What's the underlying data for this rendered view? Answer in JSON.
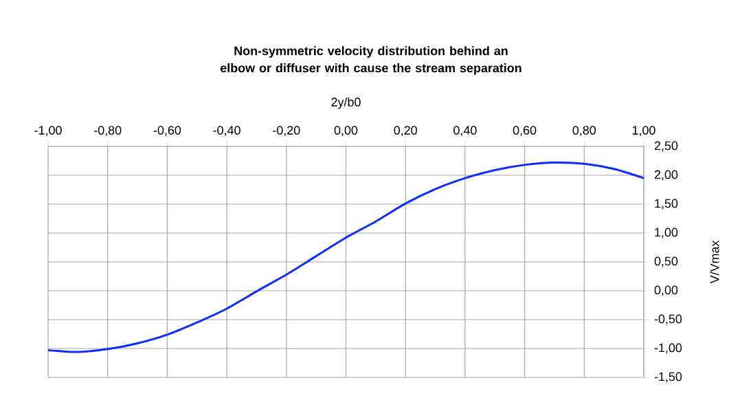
{
  "chart_data": {
    "type": "line",
    "title": "Non-symmetric velocity distribution behind an elbow or diffuser with cause the stream separation",
    "xlabel": "2y/b0",
    "ylabel": "V/Vmax",
    "x": [
      -1.0,
      -0.9,
      -0.8,
      -0.7,
      -0.6,
      -0.5,
      -0.4,
      -0.3,
      -0.2,
      -0.1,
      0.0,
      0.1,
      0.2,
      0.3,
      0.4,
      0.5,
      0.6,
      0.7,
      0.8,
      0.9,
      1.0
    ],
    "series": [
      {
        "color": "#0a2cff",
        "values": [
          -1.03,
          -1.06,
          -1.01,
          -0.91,
          -0.76,
          -0.55,
          -0.31,
          -0.01,
          0.28,
          0.6,
          0.92,
          1.2,
          1.51,
          1.76,
          1.95,
          2.09,
          2.18,
          2.22,
          2.2,
          2.11,
          1.95
        ]
      }
    ],
    "xlim": [
      -1.0,
      1.0
    ],
    "ylim": [
      -1.5,
      2.5
    ],
    "xticks": [
      {
        "value": -1.0,
        "label": "-1,00"
      },
      {
        "value": -0.8,
        "label": "-0,80"
      },
      {
        "value": -0.6,
        "label": "-0,60"
      },
      {
        "value": -0.4,
        "label": "-0,40"
      },
      {
        "value": -0.2,
        "label": "-0,20"
      },
      {
        "value": 0.0,
        "label": "0,00"
      },
      {
        "value": 0.2,
        "label": "0,20"
      },
      {
        "value": 0.4,
        "label": "0,40"
      },
      {
        "value": 0.6,
        "label": "0,60"
      },
      {
        "value": 0.8,
        "label": "0,80"
      },
      {
        "value": 1.0,
        "label": "1,00"
      }
    ],
    "yticks": [
      {
        "value": -1.5,
        "label": "-1,50"
      },
      {
        "value": -1.0,
        "label": "-1,00"
      },
      {
        "value": -0.5,
        "label": "-0,50"
      },
      {
        "value": 0.0,
        "label": "0,00"
      },
      {
        "value": 0.5,
        "label": "0,50"
      },
      {
        "value": 1.0,
        "label": "1,00"
      },
      {
        "value": 1.5,
        "label": "1,50"
      },
      {
        "value": 2.0,
        "label": "2,00"
      },
      {
        "value": 2.5,
        "label": "2,50"
      }
    ],
    "grid": true,
    "marker": "none",
    "line_style": "solid"
  }
}
